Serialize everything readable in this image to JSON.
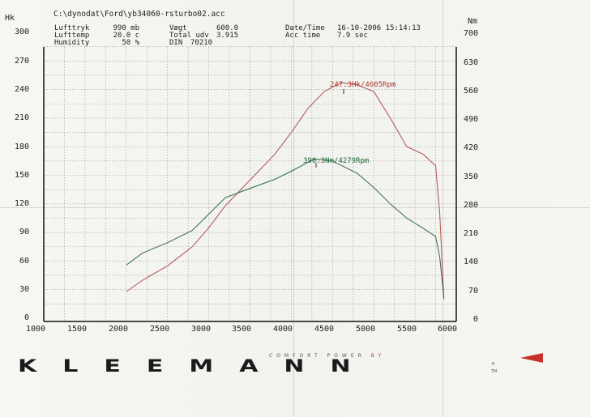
{
  "header": {
    "file_path": "C:\\dynodat\\Ford\\yb34060-rsturbo02.acc",
    "fields_col1": [
      {
        "label": "Lufttryk",
        "value": "990 mb"
      },
      {
        "label": "Lufttemp",
        "value": "20.0 c"
      },
      {
        "label": "Humidity",
        "value": "50 %"
      }
    ],
    "fields_col2": [
      {
        "label": "Vægt",
        "value": "600.0"
      },
      {
        "label": "Total udv",
        "value": "3.915"
      },
      {
        "label": "DIN",
        "value": "70210"
      }
    ],
    "fields_col3": [
      {
        "label": "Date/Time",
        "value": "16-10-2006 15:14:13"
      },
      {
        "label": "Acc time",
        "value": "7.9 sec"
      }
    ]
  },
  "axes": {
    "left_unit": "Hk",
    "right_unit": "Nm",
    "left_ticks": [
      "300",
      "270",
      "240",
      "210",
      "180",
      "150",
      "120",
      "90",
      "60",
      "30",
      "0"
    ],
    "right_ticks": [
      "700",
      "630",
      "560",
      "490",
      "420",
      "350",
      "280",
      "210",
      "140",
      "70",
      "0"
    ],
    "x_ticks": [
      "1000",
      "1500",
      "2000",
      "2500",
      "3000",
      "3500",
      "4000",
      "4500",
      "5000",
      "5500",
      "6000"
    ]
  },
  "annotations": {
    "power_peak": "247.3Hk/4605Rpm",
    "torque_peak": "390.3Nm/4279Rpm"
  },
  "colors": {
    "power": "#b0504a",
    "torque": "#2f6a4a",
    "power_label": "#b03a2e",
    "torque_label": "#1f6a3a",
    "grid": "#9a9a9a",
    "logo_accent": "#c8302a"
  },
  "branding": {
    "logo": "KLEEMANN",
    "tagline_main": "COMFORT POWER ",
    "tagline_by": "BY",
    "reg": "®",
    "tm": "TM"
  },
  "chart_data": {
    "type": "line",
    "title": "C:\\dynodat\\Ford\\yb34060-rsturbo02.acc",
    "xlabel": "Rpm",
    "ylabel": "Hk",
    "ylabel_right": "Nm",
    "xlim": [
      1000,
      6000
    ],
    "ylim": [
      0,
      300
    ],
    "ylim_right": [
      0,
      700
    ],
    "grid": true,
    "series": [
      {
        "name": "Power (Hk)",
        "axis": "left",
        "x": [
          2000,
          2200,
          2500,
          2800,
          3000,
          3200,
          3500,
          3800,
          4000,
          4200,
          4400,
          4605,
          4800,
          5000,
          5200,
          5400,
          5600,
          5750,
          5800,
          5850
        ],
        "values": [
          28,
          40,
          55,
          75,
          95,
          118,
          145,
          172,
          195,
          220,
          238,
          247.3,
          245,
          238,
          210,
          180,
          172,
          160,
          110,
          20
        ]
      },
      {
        "name": "Torque (Nm)",
        "axis": "right",
        "x": [
          2000,
          2200,
          2500,
          2800,
          3000,
          3200,
          3500,
          3800,
          4000,
          4279,
          4500,
          4800,
          5000,
          5200,
          5400,
          5600,
          5750,
          5800,
          5850
        ],
        "values": [
          130,
          160,
          185,
          215,
          255,
          295,
          318,
          340,
          360,
          390.3,
          385,
          355,
          320,
          280,
          245,
          220,
          200,
          150,
          50
        ]
      }
    ],
    "annotations": [
      "247.3Hk/4605Rpm",
      "390.3Nm/4279Rpm"
    ]
  }
}
